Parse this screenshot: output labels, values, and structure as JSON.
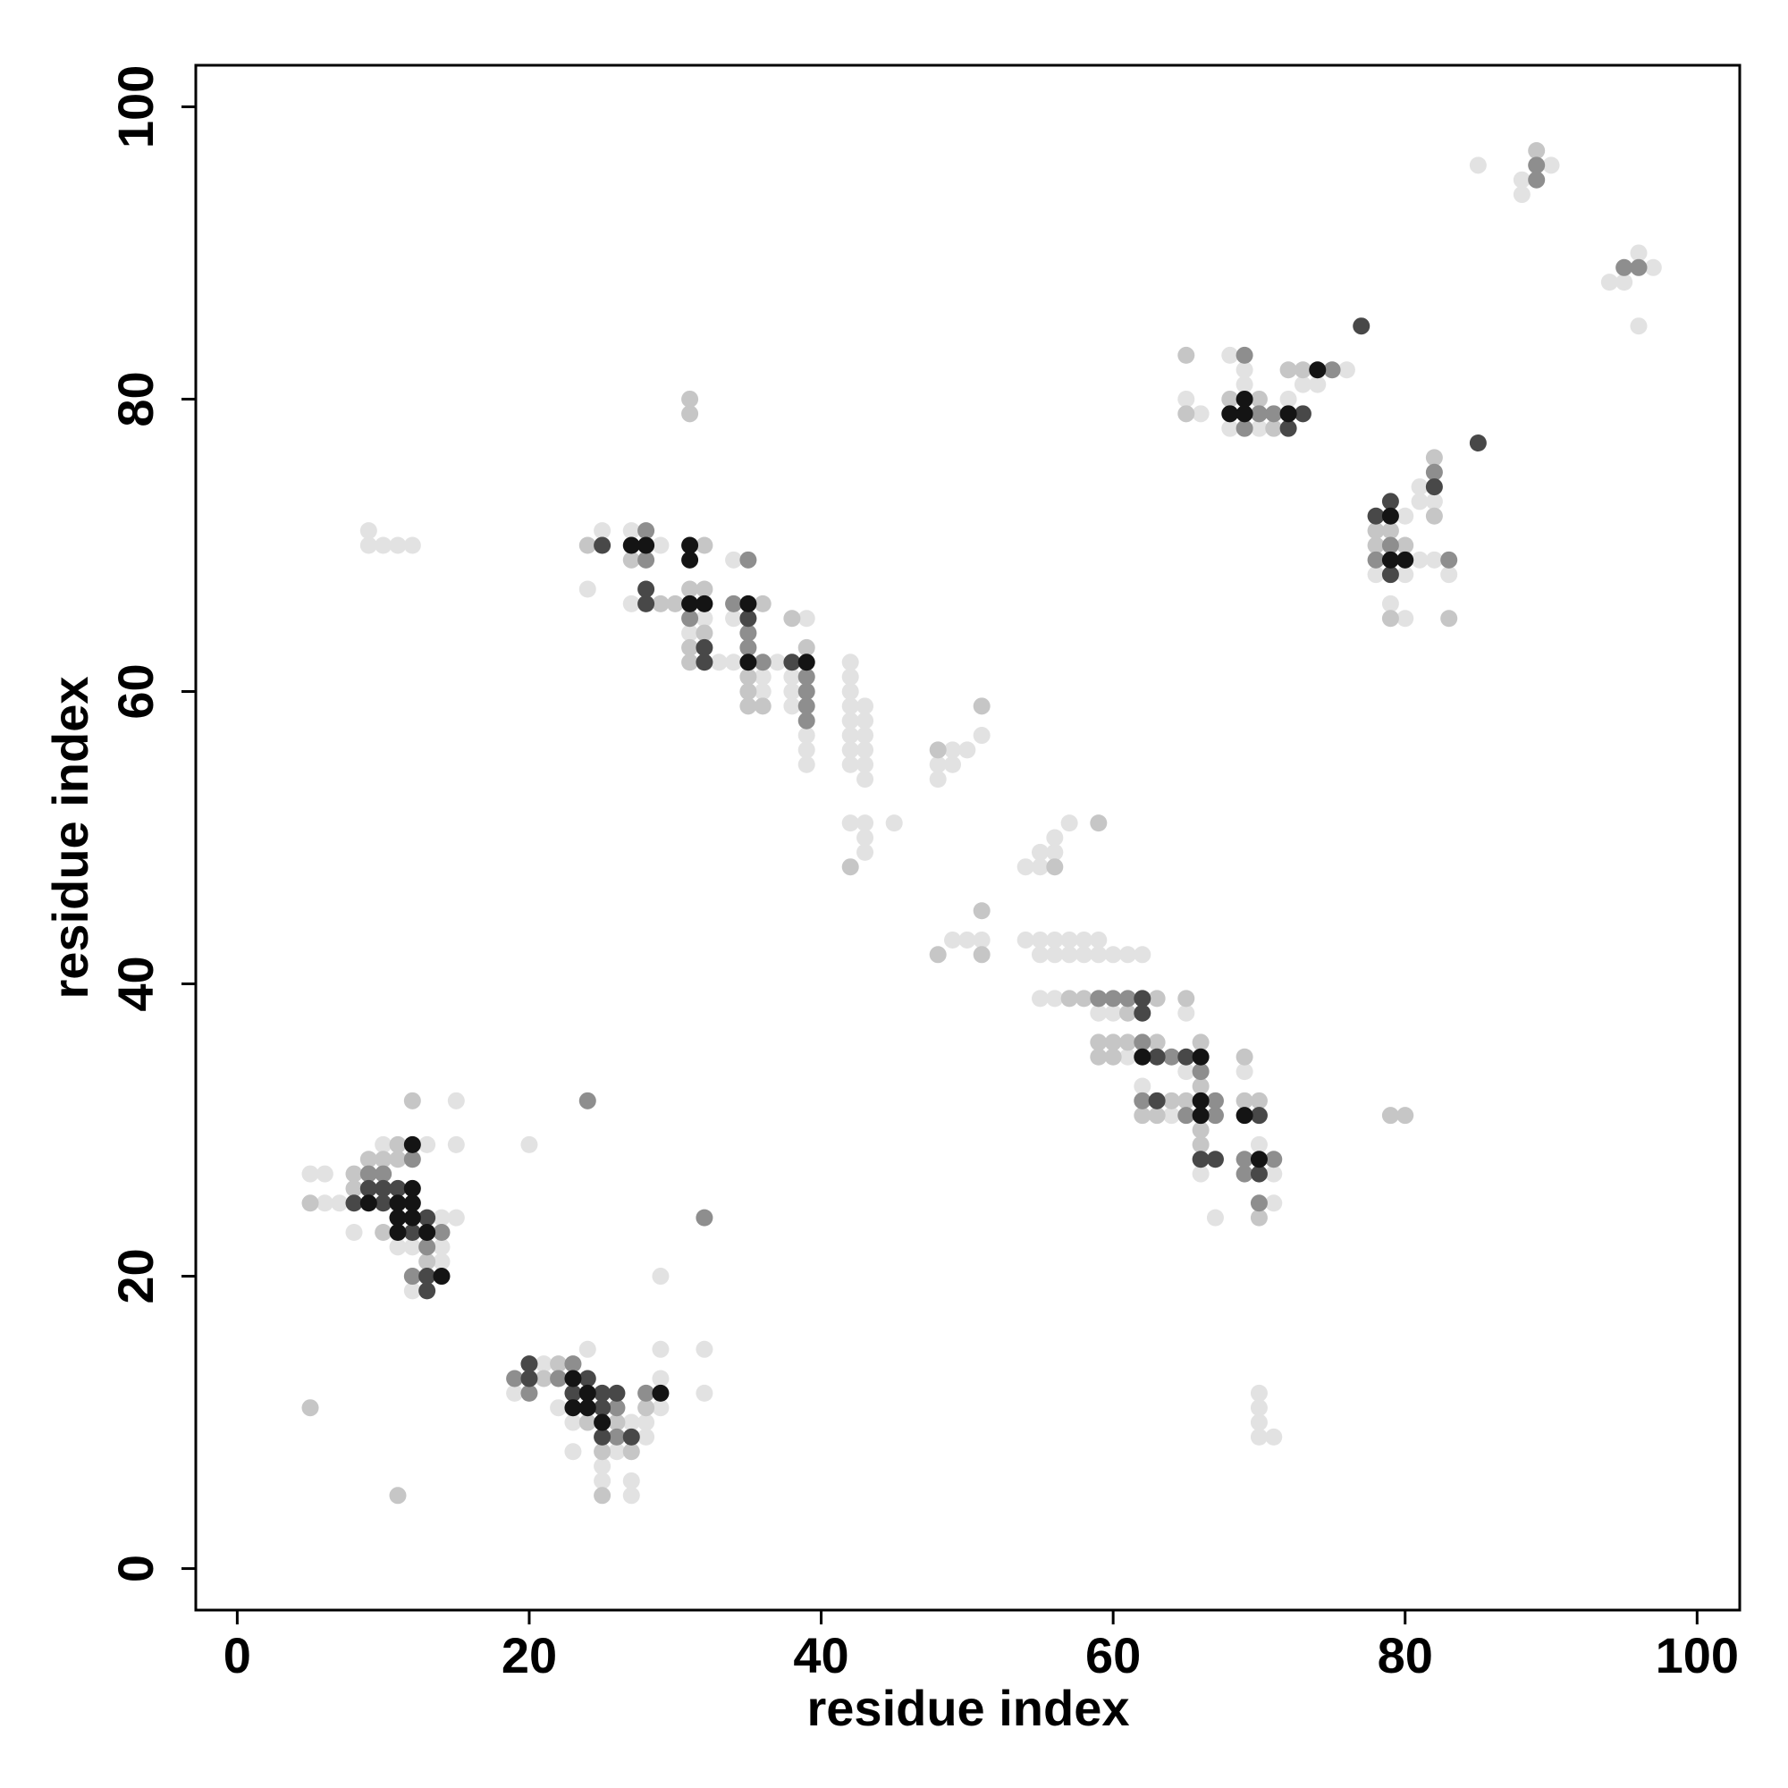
{
  "chart_data": {
    "type": "scatter",
    "xlabel": "residue index",
    "ylabel": "residue index",
    "xlim": [
      -2.84,
      102.92
    ],
    "ylim": [
      -2.84,
      102.84
    ],
    "xticks": [
      0,
      20,
      40,
      60,
      80,
      100
    ],
    "yticks": [
      0,
      20,
      40,
      60,
      80,
      100
    ],
    "series": [
      {
        "color": "#e2e2e2",
        "x": [
          85,
          88,
          88,
          90,
          94,
          95,
          96,
          97,
          96,
          65,
          66,
          68,
          68,
          69,
          69,
          70,
          72,
          73,
          74,
          76,
          78,
          79,
          80,
          80,
          80,
          81,
          81,
          81,
          82,
          82,
          83,
          49,
          50,
          51,
          54,
          55,
          55,
          56,
          56,
          57,
          57,
          58,
          58,
          59,
          59,
          60,
          61,
          62,
          54,
          55,
          55,
          56,
          56,
          57,
          55,
          56,
          59,
          60,
          65,
          61,
          65,
          69,
          62,
          64,
          70,
          66,
          71,
          71,
          67,
          70,
          70,
          70,
          70,
          71,
          9,
          9,
          10,
          11,
          12,
          24,
          25,
          27,
          27,
          29,
          31,
          32,
          33,
          34,
          34,
          34,
          36,
          36,
          38,
          38,
          38,
          39,
          39,
          39,
          39,
          37,
          42,
          42,
          42,
          42,
          42,
          42,
          42,
          42,
          43,
          43,
          43,
          43,
          43,
          43,
          42,
          43,
          43,
          43,
          45,
          48,
          48,
          49,
          49,
          50,
          51,
          5,
          6,
          6,
          7,
          8,
          10,
          11,
          12,
          12,
          13,
          14,
          14,
          14,
          15,
          15,
          15,
          20,
          19,
          21,
          22,
          23,
          23,
          24,
          25,
          25,
          26,
          27,
          27,
          27,
          28,
          28,
          29,
          29,
          29,
          29,
          32,
          32
        ],
        "values": [
          96,
          94,
          95,
          96,
          88,
          88,
          90,
          89,
          85,
          80,
          79,
          83,
          78,
          82,
          81,
          78,
          80,
          81,
          81,
          82,
          68,
          66,
          72,
          68,
          65,
          74,
          73,
          69,
          73,
          69,
          68,
          43,
          43,
          43,
          43,
          43,
          42,
          43,
          42,
          43,
          42,
          43,
          42,
          43,
          42,
          42,
          42,
          42,
          48,
          49,
          48,
          50,
          49,
          51,
          39,
          39,
          38,
          38,
          38,
          35,
          34,
          34,
          33,
          31,
          29,
          27,
          27,
          25,
          24,
          12,
          11,
          10,
          9,
          9,
          71,
          70,
          70,
          70,
          70,
          67,
          71,
          71,
          66,
          70,
          64,
          65,
          62,
          69,
          65,
          62,
          61,
          60,
          61,
          60,
          59,
          65,
          57,
          56,
          55,
          62,
          62,
          61,
          60,
          59,
          58,
          57,
          56,
          55,
          59,
          58,
          57,
          56,
          55,
          54,
          51,
          51,
          50,
          49,
          51,
          55,
          54,
          56,
          55,
          56,
          57,
          27,
          27,
          25,
          25,
          23,
          29,
          22,
          22,
          19,
          29,
          24,
          22,
          21,
          32,
          29,
          24,
          29,
          12,
          14,
          11,
          10,
          8,
          15,
          7,
          6,
          8,
          10,
          6,
          5,
          10,
          9,
          15,
          13,
          11,
          20,
          15,
          12
        ]
      },
      {
        "color": "#c6c6c6",
        "x": [
          89,
          65,
          65,
          68,
          70,
          71,
          72,
          73,
          78,
          78,
          79,
          79,
          80,
          82,
          82,
          83,
          79,
          80,
          48,
          51,
          51,
          56,
          59,
          57,
          58,
          63,
          65,
          61,
          59,
          60,
          61,
          63,
          66,
          59,
          60,
          69,
          66,
          64,
          65,
          69,
          70,
          62,
          63,
          66,
          66,
          70,
          31,
          31,
          24,
          27,
          29,
          30,
          31,
          31,
          31,
          32,
          32,
          32,
          35,
          35,
          35,
          36,
          36,
          38,
          39,
          42,
          48,
          51,
          5,
          8,
          8,
          9,
          10,
          10,
          11,
          11,
          12,
          13,
          5,
          11,
          21,
          22,
          24,
          25,
          25,
          26,
          27,
          28
        ],
        "values": [
          97,
          83,
          79,
          80,
          80,
          78,
          82,
          82,
          71,
          70,
          71,
          65,
          70,
          76,
          72,
          65,
          31,
          31,
          42,
          45,
          42,
          48,
          51,
          39,
          39,
          39,
          39,
          38,
          36,
          36,
          36,
          36,
          36,
          35,
          35,
          35,
          33,
          32,
          32,
          32,
          32,
          31,
          31,
          30,
          29,
          24,
          80,
          79,
          70,
          69,
          66,
          66,
          67,
          63,
          62,
          70,
          67,
          64,
          61,
          60,
          59,
          66,
          59,
          65,
          63,
          48,
          56,
          59,
          25,
          27,
          26,
          28,
          28,
          23,
          29,
          28,
          32,
          21,
          11,
          5,
          13,
          14,
          10,
          8,
          5,
          10,
          8,
          11
        ]
      },
      {
        "color": "#8e8e8e",
        "x": [
          89,
          89,
          95,
          96,
          69,
          69,
          70,
          71,
          75,
          78,
          79,
          82,
          83,
          59,
          60,
          61,
          62,
          64,
          66,
          62,
          67,
          65,
          67,
          69,
          71,
          69,
          70,
          28,
          28,
          31,
          34,
          35,
          35,
          35,
          36,
          39,
          39,
          39,
          39,
          9,
          10,
          12,
          12,
          13,
          14,
          24,
          32,
          19,
          20,
          22,
          23,
          26,
          26,
          28
        ],
        "values": [
          95,
          96,
          89,
          89,
          83,
          78,
          79,
          79,
          82,
          69,
          70,
          75,
          69,
          39,
          39,
          39,
          36,
          35,
          34,
          32,
          32,
          31,
          31,
          28,
          28,
          27,
          25,
          71,
          69,
          65,
          66,
          69,
          64,
          63,
          62,
          61,
          60,
          59,
          58,
          27,
          27,
          28,
          20,
          22,
          23,
          32,
          24,
          13,
          12,
          13,
          14,
          11,
          9,
          12
        ]
      },
      {
        "color": "#484848",
        "x": [
          77,
          85,
          72,
          73,
          78,
          79,
          79,
          82,
          62,
          62,
          63,
          65,
          63,
          70,
          66,
          67,
          70,
          25,
          28,
          28,
          32,
          32,
          35,
          38,
          8,
          9,
          10,
          10,
          11,
          12,
          13,
          13,
          13,
          20,
          20,
          23,
          24,
          25,
          25,
          25,
          26,
          27
        ],
        "values": [
          85,
          77,
          78,
          79,
          72,
          73,
          68,
          74,
          39,
          38,
          35,
          35,
          32,
          31,
          28,
          28,
          27,
          70,
          67,
          66,
          63,
          62,
          65,
          62,
          25,
          26,
          26,
          25,
          26,
          23,
          24,
          20,
          19,
          14,
          13,
          12,
          13,
          12,
          11,
          9,
          12,
          9
        ]
      },
      {
        "color": "#141414",
        "x": [
          68,
          69,
          69,
          72,
          74,
          79,
          79,
          80,
          62,
          66,
          66,
          66,
          69,
          70,
          27,
          28,
          31,
          31,
          31,
          32,
          35,
          35,
          39,
          9,
          11,
          11,
          11,
          12,
          12,
          12,
          12,
          13,
          14,
          23,
          23,
          24,
          24,
          25,
          29
        ],
        "values": [
          79,
          80,
          79,
          79,
          82,
          72,
          69,
          69,
          35,
          35,
          32,
          31,
          31,
          28,
          70,
          70,
          70,
          69,
          66,
          66,
          66,
          62,
          62,
          25,
          25,
          24,
          23,
          29,
          26,
          25,
          24,
          23,
          20,
          13,
          11,
          12,
          11,
          10,
          12
        ]
      }
    ]
  }
}
